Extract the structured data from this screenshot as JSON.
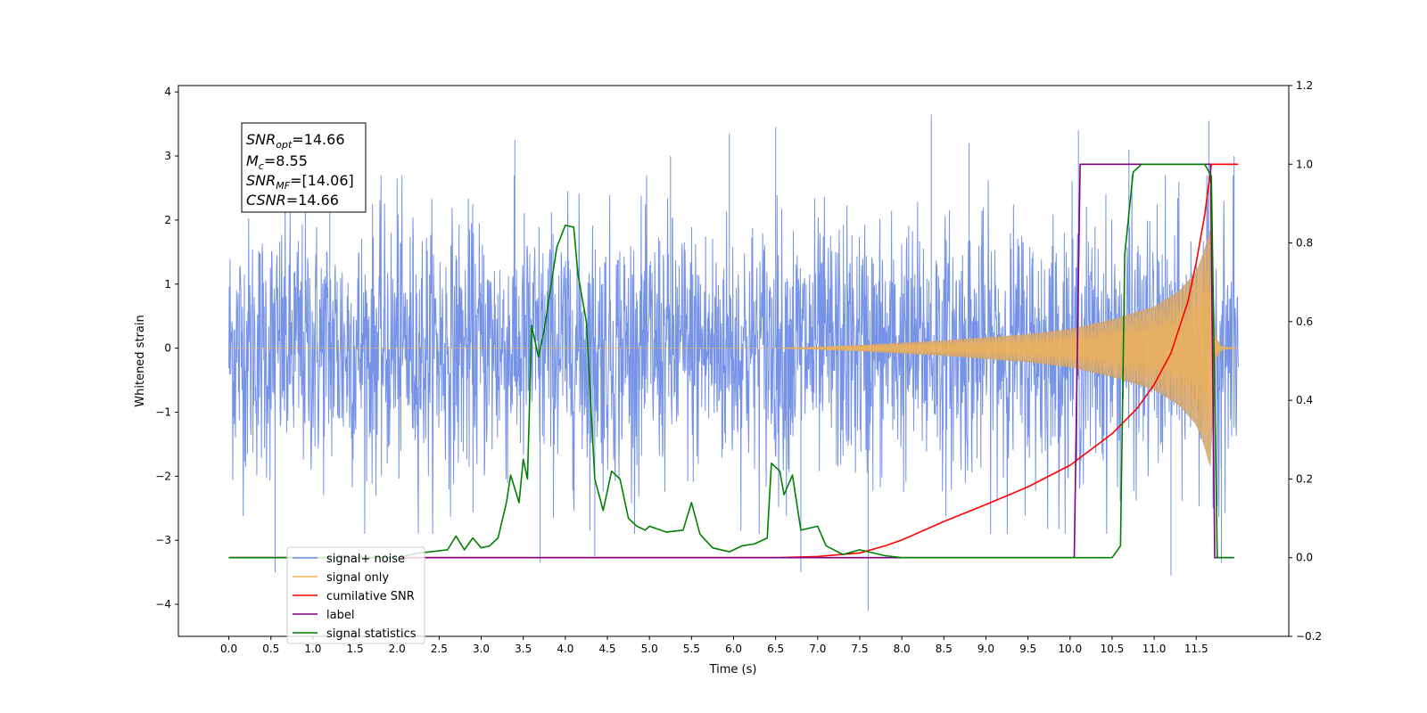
{
  "chart_data": {
    "type": "line",
    "xlabel": "Time (s)",
    "ylabel": "Whitened strain",
    "xlim": [
      -0.6,
      12.6
    ],
    "ylim": [
      -4.5,
      4.1
    ],
    "y2lim": [
      -0.2,
      1.2
    ],
    "x_ticks": [
      "0.0",
      "0.5",
      "1.0",
      "1.5",
      "2.0",
      "2.5",
      "3.0",
      "3.5",
      "4.0",
      "4.5",
      "5.0",
      "5.5",
      "6.0",
      "6.5",
      "7.0",
      "7.5",
      "8.0",
      "8.5",
      "9.0",
      "9.5",
      "10.0",
      "10.5",
      "11.0",
      "11.5"
    ],
    "y_ticks": [
      "4",
      "3",
      "2",
      "1",
      "0",
      "−1",
      "−2",
      "−3",
      "−4"
    ],
    "y2_ticks": [
      "1.2",
      "1.0",
      "0.8",
      "0.6",
      "0.4",
      "0.2",
      "0.0",
      "−0.2"
    ],
    "grid": false,
    "legend_position": "lower-left",
    "annotation": {
      "snr_opt": {
        "base": "SNR",
        "sub": "opt",
        "value": "=14.66"
      },
      "mc": {
        "base": "M",
        "sub": "c",
        "value": "=8.55"
      },
      "snr_mf": {
        "base": "SNR",
        "sub": "MF",
        "value": "=[14.06]"
      },
      "csnr": {
        "base": "CSNR",
        "value": "=14.66"
      }
    },
    "series": [
      {
        "name": "signal+ noise",
        "axis": "left",
        "color": "#6f8de6",
        "x_start": 0.0,
        "x_end": 12.0,
        "noise_envelope": [
          -2.5,
          2.5
        ],
        "peak_values": [
          {
            "x": 0.55,
            "y": -3.5
          },
          {
            "x": 1.2,
            "y": 2.6
          },
          {
            "x": 2.0,
            "y": 2.65
          },
          {
            "x": 3.4,
            "y": 3.25
          },
          {
            "x": 3.7,
            "y": -3.35
          },
          {
            "x": 4.35,
            "y": -3.25
          },
          {
            "x": 5.25,
            "y": 3.0
          },
          {
            "x": 5.95,
            "y": 3.35
          },
          {
            "x": 6.5,
            "y": 3.45
          },
          {
            "x": 6.8,
            "y": -3.5
          },
          {
            "x": 7.6,
            "y": -4.1
          },
          {
            "x": 8.35,
            "y": 3.65
          },
          {
            "x": 8.8,
            "y": 3.2
          },
          {
            "x": 10.1,
            "y": 3.4
          },
          {
            "x": 10.7,
            "y": 3.1
          },
          {
            "x": 11.2,
            "y": -3.55
          },
          {
            "x": 11.65,
            "y": 3.55
          },
          {
            "x": 11.8,
            "y": -3.35
          },
          {
            "x": 11.95,
            "y": 3.0
          }
        ]
      },
      {
        "name": "signal only",
        "axis": "left",
        "color": "#f5b453",
        "x_start": 0.0,
        "x_merger": 11.68,
        "x_end": 12.0,
        "amplitude": [
          {
            "x": 0.0,
            "y": 0.0
          },
          {
            "x": 6.5,
            "y": 0.0
          },
          {
            "x": 7.5,
            "y": 0.05
          },
          {
            "x": 8.5,
            "y": 0.12
          },
          {
            "x": 9.5,
            "y": 0.22
          },
          {
            "x": 10.0,
            "y": 0.3
          },
          {
            "x": 10.5,
            "y": 0.45
          },
          {
            "x": 11.0,
            "y": 0.65
          },
          {
            "x": 11.3,
            "y": 0.9
          },
          {
            "x": 11.5,
            "y": 1.2
          },
          {
            "x": 11.6,
            "y": 1.55
          },
          {
            "x": 11.65,
            "y": 1.8
          },
          {
            "x": 11.68,
            "y": 1.9
          },
          {
            "x": 11.72,
            "y": 0.2
          },
          {
            "x": 11.8,
            "y": 0.03
          },
          {
            "x": 12.0,
            "y": 0.0
          }
        ]
      },
      {
        "name": "cumilative SNR",
        "axis": "right",
        "color": "#ff0000",
        "points": [
          {
            "x": 0.0,
            "y": 0.0
          },
          {
            "x": 6.5,
            "y": 0.0
          },
          {
            "x": 7.0,
            "y": 0.003
          },
          {
            "x": 7.5,
            "y": 0.012
          },
          {
            "x": 7.8,
            "y": 0.03
          },
          {
            "x": 8.0,
            "y": 0.045
          },
          {
            "x": 8.5,
            "y": 0.092
          },
          {
            "x": 9.0,
            "y": 0.135
          },
          {
            "x": 9.5,
            "y": 0.18
          },
          {
            "x": 10.0,
            "y": 0.235
          },
          {
            "x": 10.5,
            "y": 0.315
          },
          {
            "x": 10.8,
            "y": 0.38
          },
          {
            "x": 11.0,
            "y": 0.44
          },
          {
            "x": 11.2,
            "y": 0.52
          },
          {
            "x": 11.4,
            "y": 0.65
          },
          {
            "x": 11.5,
            "y": 0.75
          },
          {
            "x": 11.6,
            "y": 0.87
          },
          {
            "x": 11.68,
            "y": 1.0
          },
          {
            "x": 12.0,
            "y": 1.0
          }
        ]
      },
      {
        "name": "label",
        "axis": "right",
        "color": "#800080",
        "points": [
          {
            "x": 0.0,
            "y": 0.0
          },
          {
            "x": 10.05,
            "y": 0.0
          },
          {
            "x": 10.12,
            "y": 1.0
          },
          {
            "x": 11.67,
            "y": 1.0
          },
          {
            "x": 11.72,
            "y": 0.0
          },
          {
            "x": 11.95,
            "y": 0.0
          }
        ]
      },
      {
        "name": "signal statistics",
        "axis": "right",
        "color": "#008000",
        "points": [
          {
            "x": 0.0,
            "y": 0.0
          },
          {
            "x": 2.0,
            "y": 0.0
          },
          {
            "x": 2.2,
            "y": 0.01
          },
          {
            "x": 2.4,
            "y": 0.015
          },
          {
            "x": 2.6,
            "y": 0.02
          },
          {
            "x": 2.7,
            "y": 0.055
          },
          {
            "x": 2.8,
            "y": 0.02
          },
          {
            "x": 2.9,
            "y": 0.05
          },
          {
            "x": 3.0,
            "y": 0.025
          },
          {
            "x": 3.1,
            "y": 0.03
          },
          {
            "x": 3.2,
            "y": 0.05
          },
          {
            "x": 3.3,
            "y": 0.14
          },
          {
            "x": 3.35,
            "y": 0.21
          },
          {
            "x": 3.45,
            "y": 0.14
          },
          {
            "x": 3.5,
            "y": 0.25
          },
          {
            "x": 3.55,
            "y": 0.2
          },
          {
            "x": 3.6,
            "y": 0.59
          },
          {
            "x": 3.68,
            "y": 0.51
          },
          {
            "x": 3.75,
            "y": 0.58
          },
          {
            "x": 3.9,
            "y": 0.79
          },
          {
            "x": 4.0,
            "y": 0.845
          },
          {
            "x": 4.1,
            "y": 0.84
          },
          {
            "x": 4.15,
            "y": 0.72
          },
          {
            "x": 4.25,
            "y": 0.6
          },
          {
            "x": 4.35,
            "y": 0.2
          },
          {
            "x": 4.45,
            "y": 0.12
          },
          {
            "x": 4.55,
            "y": 0.22
          },
          {
            "x": 4.65,
            "y": 0.2
          },
          {
            "x": 4.75,
            "y": 0.1
          },
          {
            "x": 4.85,
            "y": 0.08
          },
          {
            "x": 4.95,
            "y": 0.07
          },
          {
            "x": 5.0,
            "y": 0.08
          },
          {
            "x": 5.2,
            "y": 0.065
          },
          {
            "x": 5.4,
            "y": 0.07
          },
          {
            "x": 5.5,
            "y": 0.14
          },
          {
            "x": 5.6,
            "y": 0.06
          },
          {
            "x": 5.75,
            "y": 0.025
          },
          {
            "x": 5.95,
            "y": 0.015
          },
          {
            "x": 6.1,
            "y": 0.03
          },
          {
            "x": 6.25,
            "y": 0.035
          },
          {
            "x": 6.4,
            "y": 0.05
          },
          {
            "x": 6.45,
            "y": 0.24
          },
          {
            "x": 6.55,
            "y": 0.22
          },
          {
            "x": 6.6,
            "y": 0.16
          },
          {
            "x": 6.7,
            "y": 0.21
          },
          {
            "x": 6.8,
            "y": 0.07
          },
          {
            "x": 6.9,
            "y": 0.075
          },
          {
            "x": 7.0,
            "y": 0.08
          },
          {
            "x": 7.1,
            "y": 0.03
          },
          {
            "x": 7.3,
            "y": 0.008
          },
          {
            "x": 7.5,
            "y": 0.02
          },
          {
            "x": 7.8,
            "y": 0.005
          },
          {
            "x": 8.0,
            "y": 0.0
          },
          {
            "x": 10.5,
            "y": 0.0
          },
          {
            "x": 10.6,
            "y": 0.03
          },
          {
            "x": 10.65,
            "y": 0.77
          },
          {
            "x": 10.75,
            "y": 0.98
          },
          {
            "x": 10.85,
            "y": 1.0
          },
          {
            "x": 11.6,
            "y": 1.0
          },
          {
            "x": 11.68,
            "y": 0.97
          },
          {
            "x": 11.75,
            "y": 0.0
          },
          {
            "x": 11.95,
            "y": 0.0
          }
        ]
      }
    ]
  }
}
